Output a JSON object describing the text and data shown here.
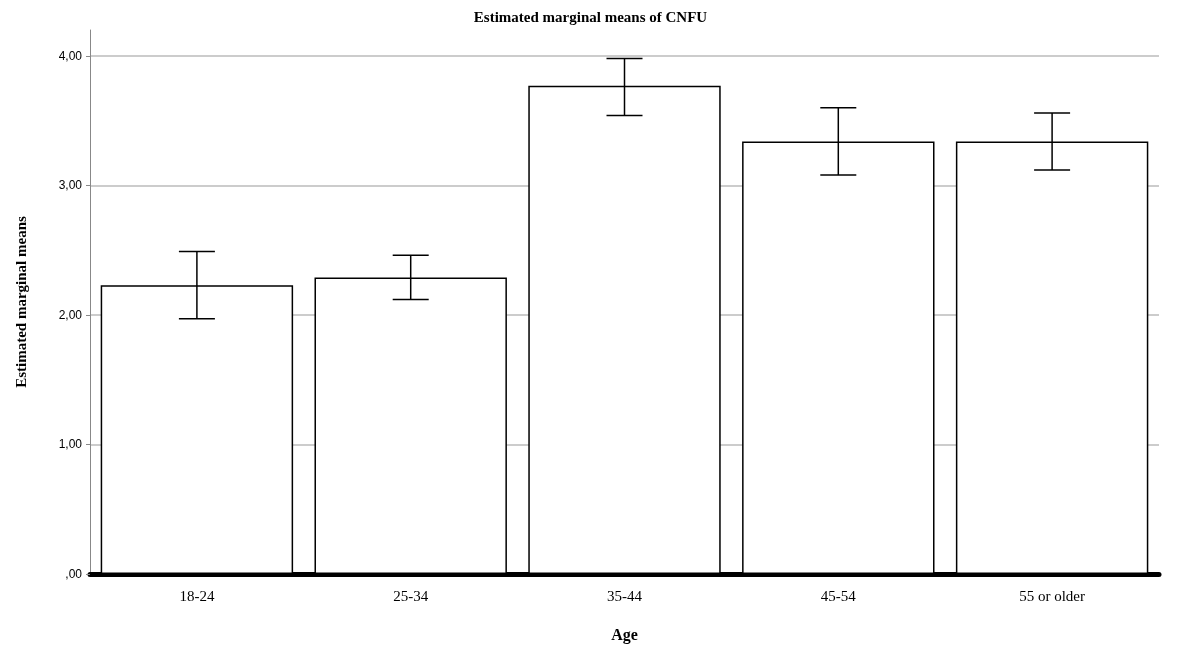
{
  "chart_data": {
    "type": "bar",
    "title": "Estimated marginal means of CNFU",
    "xlabel": "Age",
    "ylabel": "Estimated marginal means",
    "categories": [
      "18-24",
      "25-34",
      "35-44",
      "45-54",
      "55 or older"
    ],
    "values": [
      2.23,
      2.29,
      3.77,
      3.34,
      3.34
    ],
    "errors": [
      [
        1.97,
        2.49
      ],
      [
        2.12,
        2.46
      ],
      [
        3.54,
        3.98
      ],
      [
        3.08,
        3.6
      ],
      [
        3.12,
        3.56
      ]
    ],
    "color": "#ffffff",
    "ylim": [
      0,
      4.2
    ],
    "yticks": [
      {
        "value": 0,
        "label": ",00"
      },
      {
        "value": 1,
        "label": "1,00"
      },
      {
        "value": 2,
        "label": "2,00"
      },
      {
        "value": 3,
        "label": "3,00"
      },
      {
        "value": 4,
        "label": "4,00"
      }
    ],
    "grid": "y"
  }
}
